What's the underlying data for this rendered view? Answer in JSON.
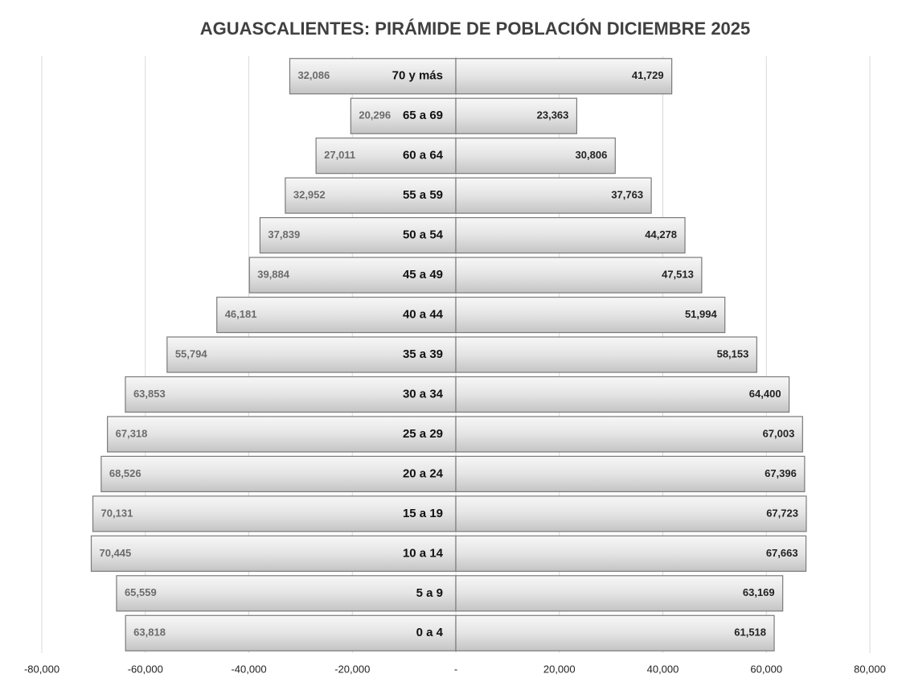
{
  "chart_data": {
    "type": "pyramid",
    "title": "AGUASCALIENTES: PIRÁMIDE DE POBLACIÓN DICIEMBRE 2025",
    "categories": [
      "0 a 4",
      "5 a 9",
      "10 a 14",
      "15 a 19",
      "20 a 24",
      "25 a 29",
      "30 a 34",
      "35 a 39",
      "40 a 44",
      "45 a 49",
      "50 a 54",
      "55 a 59",
      "60 a 64",
      "65 a 69",
      "70 y más"
    ],
    "series": [
      {
        "color": "#d4d4d4",
        "values": [
          -63818,
          -65559,
          -70445,
          -70131,
          -68526,
          -67318,
          -63853,
          -55794,
          -46181,
          -39884,
          -37839,
          -32952,
          -27011,
          -20296,
          -32086
        ],
        "value_labels": [
          "63,818",
          "65,559",
          "70,445",
          "70,131",
          "68,526",
          "67,318",
          "63,853",
          "55,794",
          "46,181",
          "39,884",
          "37,839",
          "32,952",
          "27,011",
          "20,296",
          "32,086"
        ]
      },
      {
        "color": "#d4d4d4",
        "values": [
          61518,
          63169,
          67663,
          67723,
          67396,
          67003,
          64400,
          58153,
          51994,
          47513,
          44278,
          37763,
          30806,
          23363,
          41729
        ],
        "value_labels": [
          "61,518",
          "63,169",
          "67,663",
          "67,723",
          "67,396",
          "67,003",
          "64,400",
          "58,153",
          "51,994",
          "47,513",
          "44,278",
          "37,763",
          "30,806",
          "23,363",
          "41,729"
        ]
      }
    ],
    "xlim": [
      -80000,
      80000
    ],
    "xticks": [
      {
        "value": -80000,
        "label": "-80,000"
      },
      {
        "value": -60000,
        "label": "-60,000"
      },
      {
        "value": -40000,
        "label": "-40,000"
      },
      {
        "value": -20000,
        "label": "-20,000"
      },
      {
        "value": 0,
        "label": "-"
      },
      {
        "value": 20000,
        "label": "20,000"
      },
      {
        "value": 40000,
        "label": "40,000"
      },
      {
        "value": 60000,
        "label": "60,000"
      },
      {
        "value": 80000,
        "label": "80,000"
      }
    ],
    "grid": true
  }
}
